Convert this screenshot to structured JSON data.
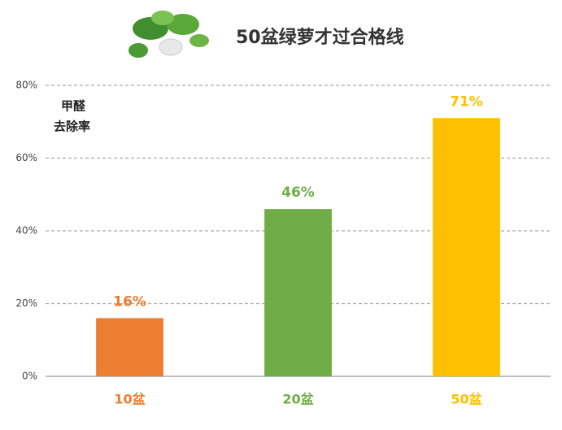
{
  "chart_data": {
    "type": "bar",
    "title": "50盆绿萝才过合格线",
    "y_label": [
      "甲醛",
      "去除率"
    ],
    "categories": [
      "10盆",
      "20盆",
      "50盆"
    ],
    "values": [
      16,
      46,
      71
    ],
    "value_labels": [
      "16%",
      "46%",
      "71%"
    ],
    "colors": [
      "#ed7d31",
      "#70ad47",
      "#ffc000"
    ],
    "ylim": [
      0,
      80
    ],
    "yticks": [
      {
        "value": 0,
        "label": "0%"
      },
      {
        "value": 20,
        "label": "20%"
      },
      {
        "value": 40,
        "label": "40%"
      },
      {
        "value": 60,
        "label": "60%"
      },
      {
        "value": 80,
        "label": "80%"
      }
    ],
    "grid": true
  }
}
